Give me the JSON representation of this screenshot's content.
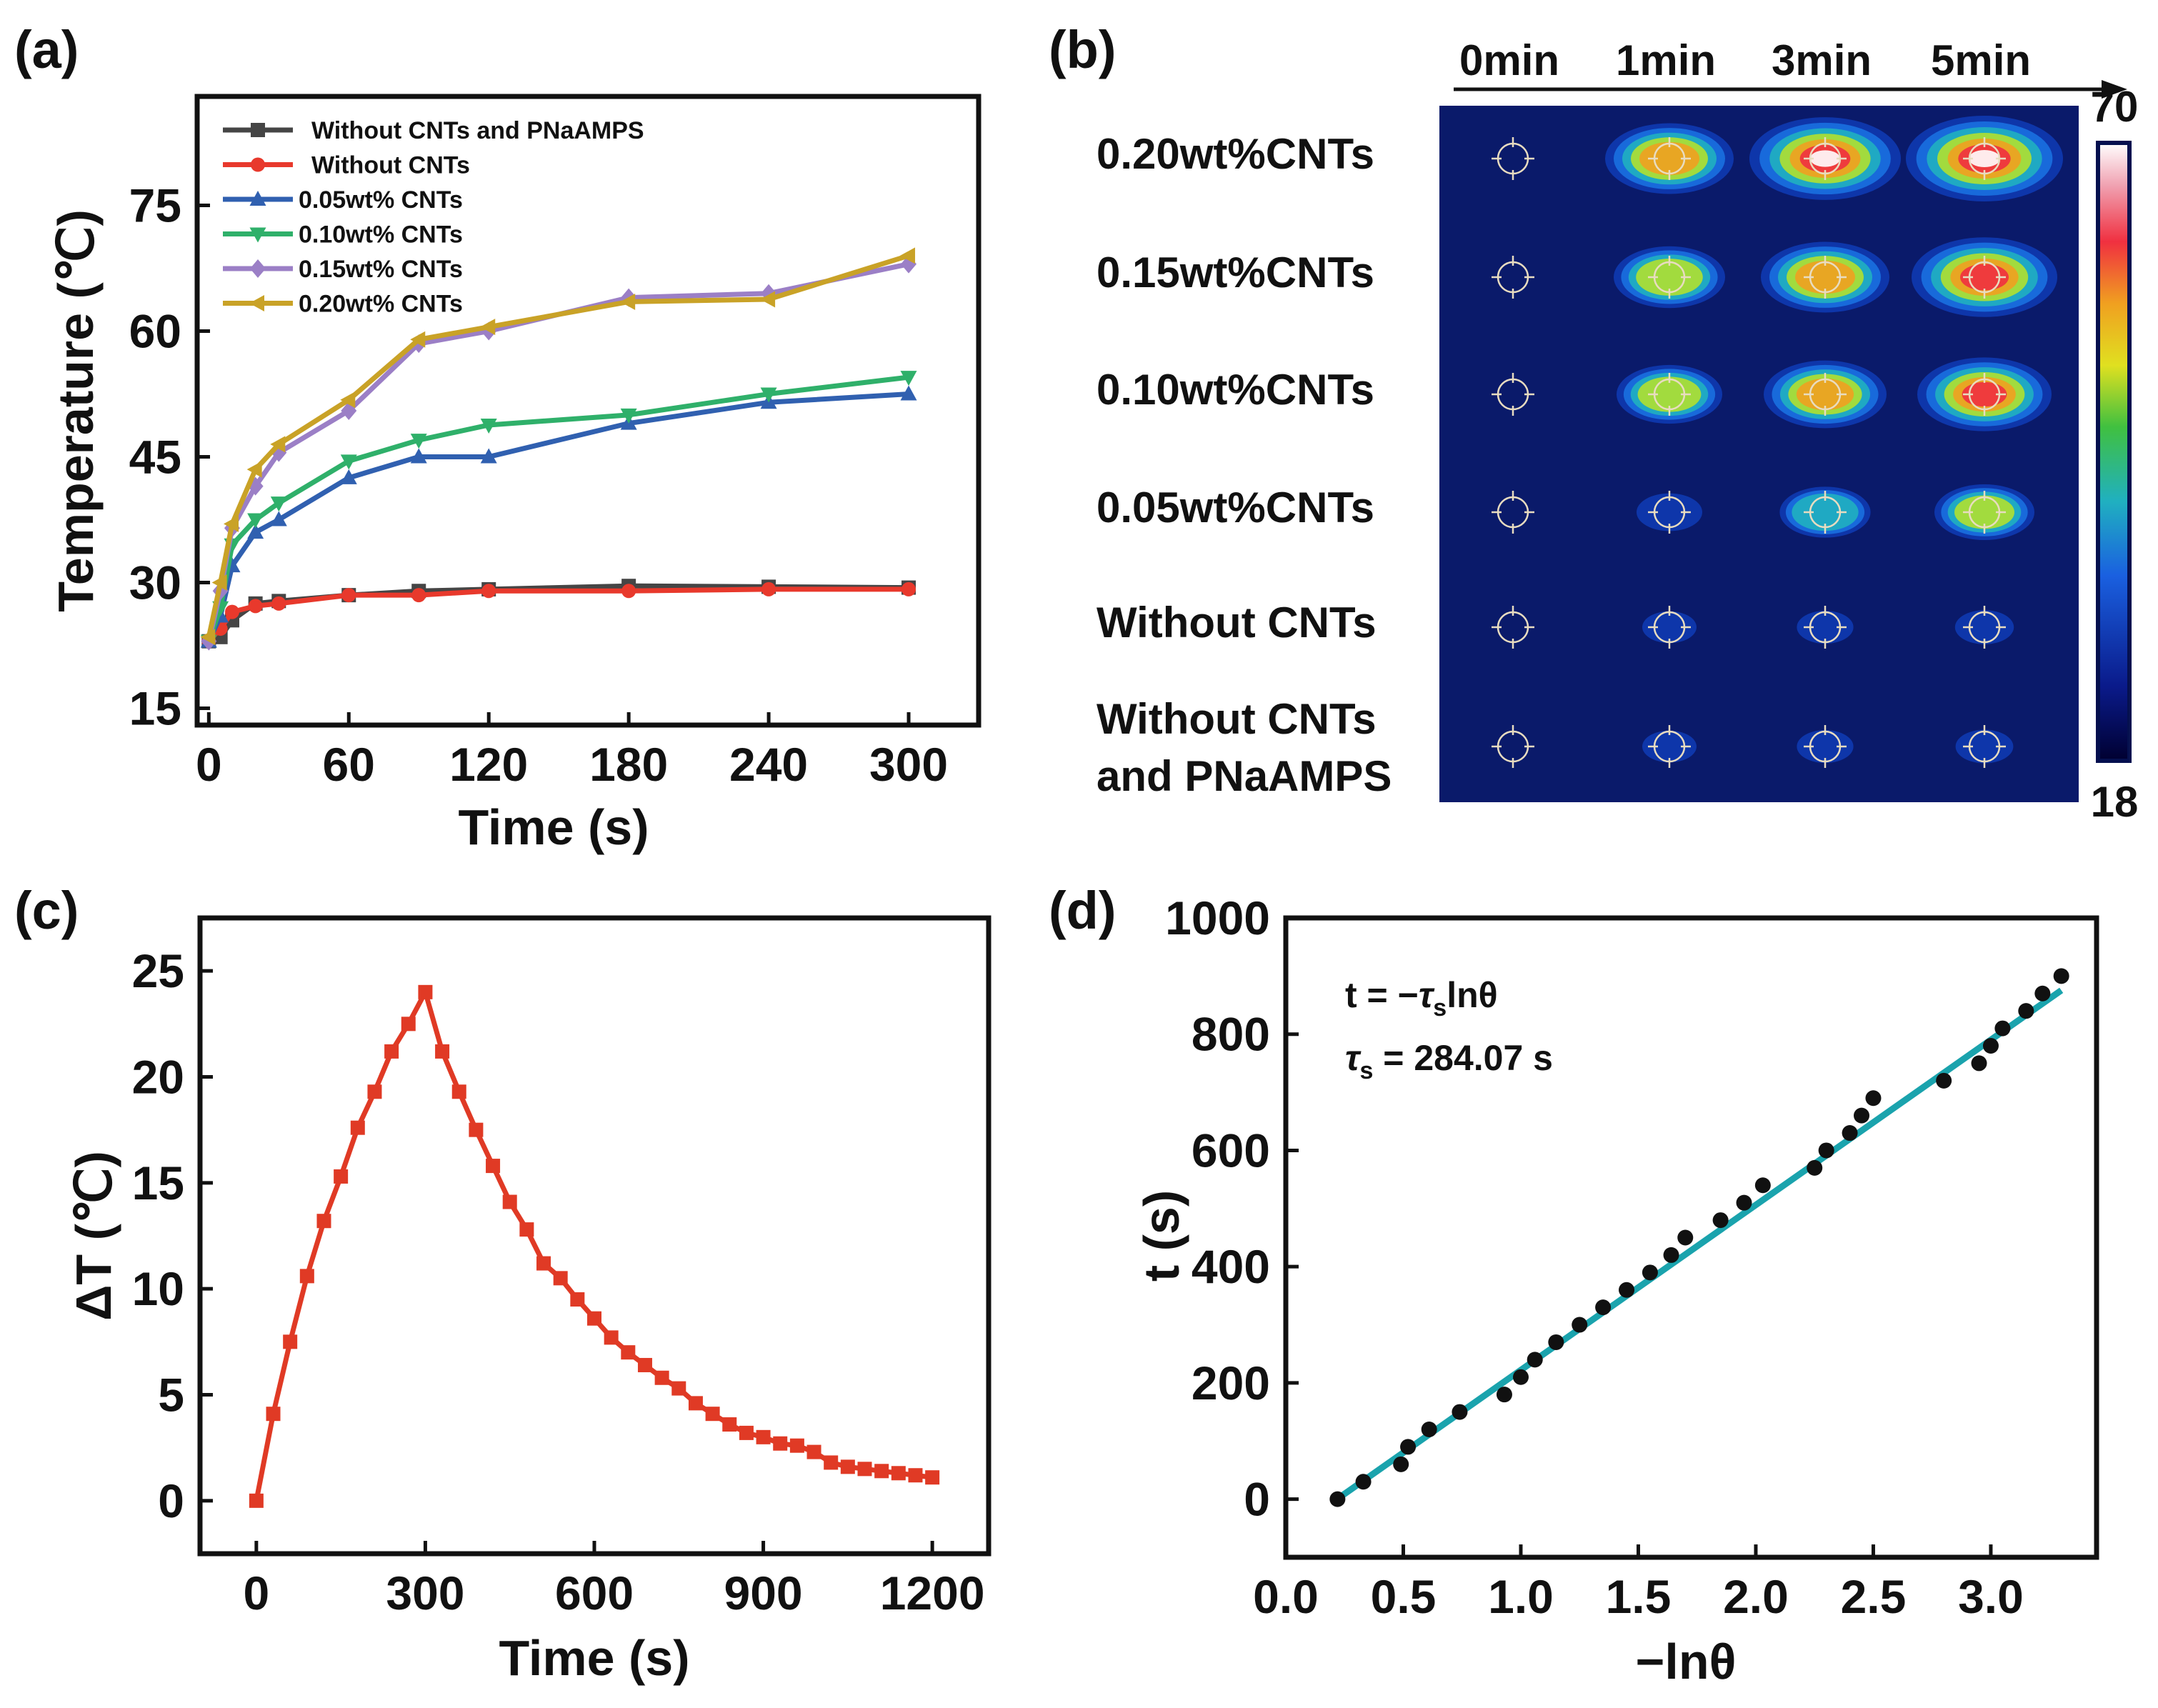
{
  "chart_data": [
    {
      "id": "a",
      "panel_label": "(a)",
      "type": "line",
      "xlabel": "Time (s)",
      "ylabel": "Temperature (℃)",
      "xlim": [
        -5,
        330
      ],
      "ylim": [
        13,
        88
      ],
      "x_ticks": [
        0,
        60,
        120,
        180,
        240,
        300
      ],
      "y_ticks": [
        15,
        30,
        45,
        60,
        75
      ],
      "legend_position": "top-left",
      "series": [
        {
          "name": "Without CNTs and PNaAMPS",
          "color": "#454545",
          "marker": "square",
          "x": [
            0,
            5,
            10,
            20,
            30,
            60,
            90,
            120,
            180,
            240,
            300
          ],
          "y": [
            23,
            23.5,
            25.5,
            27.5,
            27.8,
            28.5,
            29,
            29.2,
            29.6,
            29.5,
            29.4
          ]
        },
        {
          "name": "Without CNTs",
          "color": "#e8392c",
          "marker": "circle",
          "x": [
            0,
            5,
            10,
            20,
            30,
            60,
            90,
            120,
            180,
            240,
            300
          ],
          "y": [
            23,
            24.5,
            26.5,
            27.2,
            27.5,
            28.5,
            28.5,
            29,
            29,
            29.2,
            29.2
          ]
        },
        {
          "name": "0.05wt% CNTs",
          "color": "#3060b0",
          "marker": "triangle-up",
          "x": [
            0,
            5,
            10,
            20,
            30,
            60,
            90,
            120,
            180,
            240,
            300
          ],
          "y": [
            23,
            26,
            32,
            36,
            37.5,
            42.5,
            45,
            45,
            49,
            51.5,
            52.5
          ]
        },
        {
          "name": "0.10wt% CNTs",
          "color": "#2fb06a",
          "marker": "triangle-down",
          "x": [
            0,
            5,
            10,
            20,
            30,
            60,
            90,
            120,
            180,
            240,
            300
          ],
          "y": [
            23,
            27,
            34.5,
            37.5,
            39.5,
            44.5,
            47,
            48.8,
            50,
            52.5,
            54.5
          ]
        },
        {
          "name": "0.15wt% CNTs",
          "color": "#9b7fc6",
          "marker": "diamond",
          "x": [
            0,
            5,
            10,
            20,
            30,
            60,
            90,
            120,
            180,
            240,
            300
          ],
          "y": [
            23,
            29,
            36.5,
            41.5,
            45.5,
            50.5,
            58.5,
            60,
            64,
            64.5,
            68
          ]
        },
        {
          "name": "0.20wt% CNTs",
          "color": "#c9a227",
          "marker": "triangle-left",
          "x": [
            0,
            5,
            10,
            20,
            30,
            60,
            90,
            120,
            180,
            240,
            300
          ],
          "y": [
            23.5,
            30,
            37,
            43.5,
            46.5,
            51.8,
            59,
            60.5,
            63.5,
            63.8,
            69
          ]
        }
      ]
    },
    {
      "id": "c",
      "panel_label": "(c)",
      "type": "line",
      "xlabel": "Time (s)",
      "ylabel": "ΔT (℃)",
      "xlim": [
        -100,
        1300
      ],
      "ylim": [
        -2.5,
        27.5
      ],
      "x_ticks": [
        0,
        300,
        600,
        900,
        1200
      ],
      "y_ticks": [
        0,
        5,
        10,
        15,
        20,
        25
      ],
      "series": [
        {
          "name": "ΔT",
          "color": "#e03a25",
          "marker": "square",
          "x": [
            0,
            30,
            60,
            90,
            120,
            150,
            180,
            210,
            240,
            270,
            300,
            330,
            360,
            390,
            420,
            450,
            480,
            510,
            540,
            570,
            600,
            630,
            660,
            690,
            720,
            750,
            780,
            810,
            840,
            870,
            900,
            930,
            960,
            990,
            1020,
            1050,
            1080,
            1110,
            1140,
            1170,
            1200
          ],
          "y": [
            0,
            4.1,
            7.5,
            10.6,
            13.2,
            15.3,
            17.6,
            19.3,
            21.2,
            22.5,
            24,
            21.2,
            19.3,
            17.5,
            15.8,
            14.1,
            12.8,
            11.2,
            10.5,
            9.5,
            8.6,
            7.7,
            7.0,
            6.4,
            5.8,
            5.3,
            4.6,
            4.1,
            3.6,
            3.2,
            3.0,
            2.7,
            2.6,
            2.3,
            1.8,
            1.6,
            1.5,
            1.4,
            1.3,
            1.2,
            1.1
          ]
        }
      ]
    },
    {
      "id": "d",
      "panel_label": "(d)",
      "type": "scatter",
      "xlabel": "−lnθ",
      "ylabel": "t (s)",
      "xlim": [
        0.0,
        3.45
      ],
      "ylim": [
        -100,
        1000
      ],
      "x_ticks": [
        0.0,
        0.5,
        1.0,
        1.5,
        2.0,
        2.5,
        3.0
      ],
      "y_ticks": [
        0,
        200,
        400,
        600,
        800,
        1000
      ],
      "equation_parts": {
        "lhs": "t = −",
        "symbol": "τ",
        "subscript": "s",
        "rhs": "lnθ"
      },
      "value_parts": {
        "symbol": "τ",
        "subscript": "s",
        "rhs": " = 284.07 s"
      },
      "fit": {
        "color": "#1aa3ad",
        "slope": 284.07,
        "intercept": -62,
        "x_range": [
          0.22,
          3.3
        ]
      },
      "points": {
        "color": "#111111",
        "x": [
          0.22,
          0.33,
          0.49,
          0.52,
          0.61,
          0.74,
          0.93,
          1.0,
          1.06,
          1.15,
          1.25,
          1.35,
          1.45,
          1.55,
          1.64,
          1.7,
          1.85,
          1.95,
          2.03,
          2.25,
          2.3,
          2.4,
          2.45,
          2.5,
          2.8,
          2.95,
          3.0,
          3.05,
          3.15,
          3.22,
          3.3
        ],
        "y": [
          0,
          30,
          60,
          90,
          120,
          150,
          180,
          210,
          240,
          270,
          300,
          330,
          360,
          390,
          420,
          450,
          480,
          510,
          540,
          570,
          600,
          630,
          660,
          690,
          720,
          750,
          780,
          810,
          840,
          870,
          900
        ]
      }
    }
  ],
  "thermal_panel": {
    "panel_label": "(b)",
    "time_labels": [
      "0min",
      "1min",
      "3min",
      "5min"
    ],
    "row_labels": [
      [
        "0.20wt%CNTs"
      ],
      [
        "0.15wt%CNTs"
      ],
      [
        "0.10wt%CNTs"
      ],
      [
        "0.05wt%CNTs"
      ],
      [
        "Without CNTs"
      ],
      [
        "Without CNTs",
        "and PNaAMPS"
      ]
    ],
    "colorbar_max": "70",
    "colorbar_min": "18",
    "hotspot_intensity": [
      [
        0.0,
        0.75,
        0.95,
        1.0
      ],
      [
        0.0,
        0.6,
        0.75,
        0.9
      ],
      [
        0.0,
        0.55,
        0.7,
        0.8
      ],
      [
        0.0,
        0.2,
        0.42,
        0.5
      ],
      [
        0.0,
        0.1,
        0.12,
        0.14
      ],
      [
        0.0,
        0.1,
        0.12,
        0.13
      ]
    ],
    "colors": {
      "background": "#0a1a6a",
      "frame": "#05104f"
    }
  }
}
